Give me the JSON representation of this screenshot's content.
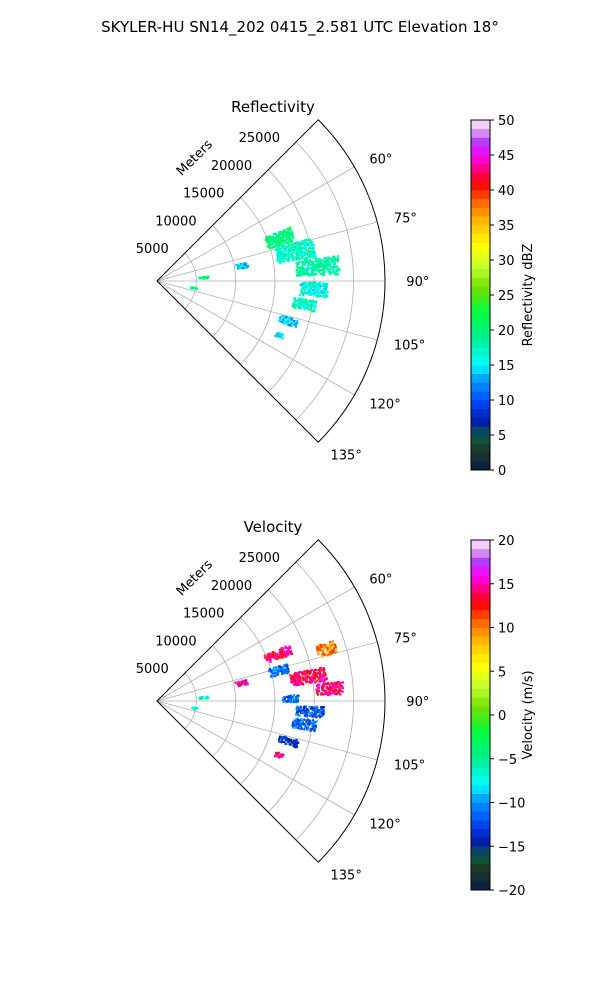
{
  "figure_title": "SKYLER-HU  SN14_202  0415_2.581 UTC Elevation 18°",
  "chart_data": [
    {
      "type": "polar-sector",
      "title": "Reflectivity",
      "radial_label": "Meters",
      "radial_ticks": [
        5000,
        10000,
        15000,
        20000,
        25000
      ],
      "radial_tick_labels": [
        "5000",
        "10000",
        "15000",
        "20000",
        "25000"
      ],
      "r_max": 29000,
      "theta_range_deg": [
        45,
        135
      ],
      "theta_ticks_deg": [
        60,
        75,
        90,
        105,
        120,
        135
      ],
      "theta_tick_labels": [
        "60°",
        "75°",
        "90°",
        "105°",
        "120°",
        "135°"
      ],
      "grid": true,
      "colorbar": {
        "label": "Reflectivity dBZ",
        "min": 0,
        "max": 50,
        "ticks": [
          0,
          5,
          10,
          15,
          20,
          25,
          30,
          35,
          40,
          45,
          50
        ],
        "tick_labels": [
          "0",
          "5",
          "10",
          "15",
          "20",
          "25",
          "30",
          "35",
          "40",
          "45",
          "50"
        ]
      },
      "echo_regions": [
        {
          "theta": 71,
          "r": 16500,
          "dtheta": 6,
          "dr": 3500,
          "value": 20
        },
        {
          "theta": 78,
          "r": 18000,
          "dtheta": 7,
          "dr": 5000,
          "value": 17
        },
        {
          "theta": 85,
          "r": 20500,
          "dtheta": 6,
          "dr": 5500,
          "value": 18
        },
        {
          "theta": 93,
          "r": 20000,
          "dtheta": 5,
          "dr": 3500,
          "value": 16
        },
        {
          "theta": 99,
          "r": 19000,
          "dtheta": 4,
          "dr": 3000,
          "value": 17
        },
        {
          "theta": 107,
          "r": 17500,
          "dtheta": 3,
          "dr": 2500,
          "value": 14
        },
        {
          "theta": 80,
          "r": 11000,
          "dtheta": 3,
          "dr": 1500,
          "value": 14
        },
        {
          "theta": 114,
          "r": 17000,
          "dtheta": 2,
          "dr": 1000,
          "value": 14
        },
        {
          "theta": 86,
          "r": 6000,
          "dtheta": 2,
          "dr": 1200,
          "value": 20
        },
        {
          "theta": 101,
          "r": 4800,
          "dtheta": 2,
          "dr": 800,
          "value": 20
        }
      ]
    },
    {
      "type": "polar-sector",
      "title": "Velocity",
      "radial_label": "Meters",
      "radial_ticks": [
        5000,
        10000,
        15000,
        20000,
        25000
      ],
      "radial_tick_labels": [
        "5000",
        "10000",
        "15000",
        "20000",
        "25000"
      ],
      "r_max": 29000,
      "theta_range_deg": [
        45,
        135
      ],
      "theta_ticks_deg": [
        60,
        75,
        90,
        105,
        120,
        135
      ],
      "theta_tick_labels": [
        "60°",
        "75°",
        "90°",
        "105°",
        "120°",
        "135°"
      ],
      "grid": true,
      "colorbar": {
        "label": "Velocity (m/s)",
        "min": -20,
        "max": 20,
        "ticks": [
          -20,
          -15,
          -10,
          -5,
          0,
          5,
          10,
          15,
          20
        ],
        "tick_labels": [
          "−20",
          "−15",
          "−10",
          "−5",
          "0",
          "5",
          "10",
          "15",
          "20"
        ]
      },
      "echo_regions": [
        {
          "theta": 69,
          "r": 16500,
          "dtheta": 4,
          "dr": 3500,
          "value": 14
        },
        {
          "theta": 73,
          "r": 22500,
          "dtheta": 4,
          "dr": 2500,
          "value": 10
        },
        {
          "theta": 76,
          "r": 16000,
          "dtheta": 4,
          "dr": 2500,
          "value": -11
        },
        {
          "theta": 81,
          "r": 19500,
          "dtheta": 5,
          "dr": 4500,
          "value": 14
        },
        {
          "theta": 86,
          "r": 22000,
          "dtheta": 4,
          "dr": 3500,
          "value": 14
        },
        {
          "theta": 89,
          "r": 17000,
          "dtheta": 3,
          "dr": 2000,
          "value": -11
        },
        {
          "theta": 94,
          "r": 19500,
          "dtheta": 4,
          "dr": 3500,
          "value": -12
        },
        {
          "theta": 99,
          "r": 19000,
          "dtheta": 4,
          "dr": 3000,
          "value": -11
        },
        {
          "theta": 107,
          "r": 17500,
          "dtheta": 3,
          "dr": 2500,
          "value": -14
        },
        {
          "theta": 78,
          "r": 11000,
          "dtheta": 3,
          "dr": 1500,
          "value": 15
        },
        {
          "theta": 114,
          "r": 17000,
          "dtheta": 2,
          "dr": 1000,
          "value": 15
        },
        {
          "theta": 86,
          "r": 6000,
          "dtheta": 2,
          "dr": 1200,
          "value": -6
        },
        {
          "theta": 101,
          "r": 4800,
          "dtheta": 2,
          "dr": 800,
          "value": -6
        }
      ]
    }
  ]
}
